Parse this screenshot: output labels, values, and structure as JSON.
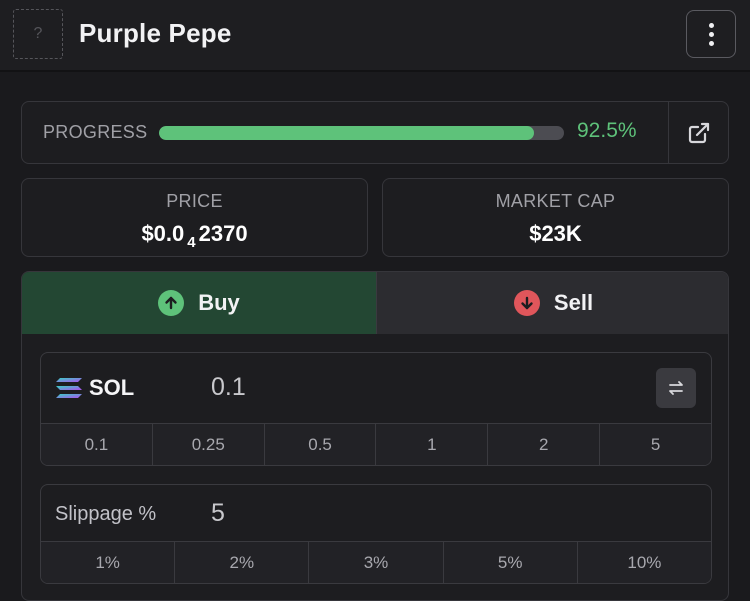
{
  "header": {
    "avatar_placeholder": "?",
    "token_name": "Purple Pepe"
  },
  "progress": {
    "label": "PROGRESS",
    "value_text": "92.5%",
    "fraction": 0.925,
    "color": "#5ec27a"
  },
  "price": {
    "label": "PRICE",
    "prefix": "$0.0",
    "zero_count": "4",
    "digits": "2370"
  },
  "market_cap": {
    "label": "MARKET CAP",
    "value": "$23K"
  },
  "tabs": {
    "buy_label": "Buy",
    "sell_label": "Sell",
    "buy_color": "#234733",
    "sell_color": "#2c2c30"
  },
  "amount": {
    "currency": "SOL",
    "value": "0.1",
    "presets": [
      "0.1",
      "0.25",
      "0.5",
      "1",
      "2",
      "5"
    ]
  },
  "slippage": {
    "label": "Slippage %",
    "value": "5",
    "presets": [
      "1%",
      "2%",
      "3%",
      "5%",
      "10%"
    ]
  }
}
